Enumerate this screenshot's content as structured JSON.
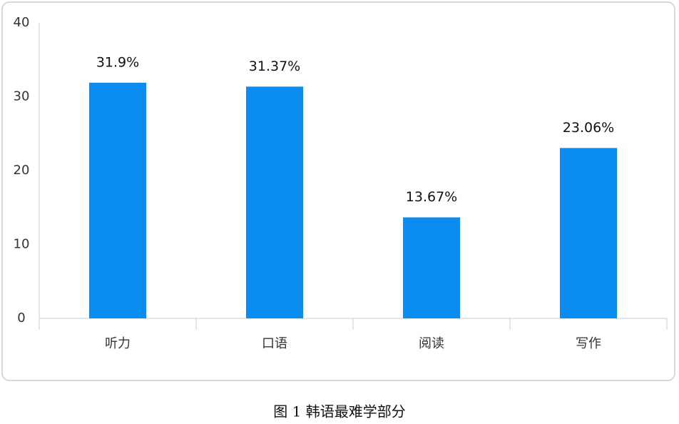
{
  "chart_data": {
    "type": "bar",
    "categories": [
      "听力",
      "口语",
      "阅读",
      "写作"
    ],
    "values": [
      31.9,
      31.37,
      13.67,
      23.06
    ],
    "value_labels": [
      "31.9%",
      "31.37%",
      "13.67%",
      "23.06%"
    ],
    "color": "#0a8cf0",
    "ylim": [
      0,
      40
    ],
    "yticks": [
      0,
      10,
      20,
      30,
      40
    ],
    "grid": false,
    "caption": "图 1  韩语最难学部分"
  }
}
